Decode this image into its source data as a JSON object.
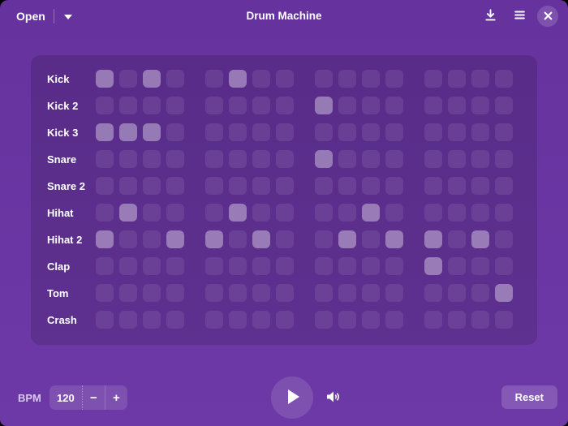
{
  "header": {
    "open_label": "Open",
    "title": "Drum Machine",
    "icons": {
      "open_dropdown": "chevron-down",
      "save": "download-arrow",
      "menu": "hamburger",
      "close": "x"
    }
  },
  "grid": {
    "step_count": 16,
    "group_size": 4,
    "rows": [
      {
        "label": "Kick",
        "steps": [
          1,
          0,
          1,
          0,
          0,
          1,
          0,
          0,
          0,
          0,
          0,
          0,
          0,
          0,
          0,
          0
        ]
      },
      {
        "label": "Kick 2",
        "steps": [
          0,
          0,
          0,
          0,
          0,
          0,
          0,
          0,
          1,
          0,
          0,
          0,
          0,
          0,
          0,
          0
        ]
      },
      {
        "label": "Kick 3",
        "steps": [
          1,
          1,
          1,
          0,
          0,
          0,
          0,
          0,
          0,
          0,
          0,
          0,
          0,
          0,
          0,
          0
        ]
      },
      {
        "label": "Snare",
        "steps": [
          0,
          0,
          0,
          0,
          0,
          0,
          0,
          0,
          1,
          0,
          0,
          0,
          0,
          0,
          0,
          0
        ]
      },
      {
        "label": "Snare 2",
        "steps": [
          0,
          0,
          0,
          0,
          0,
          0,
          0,
          0,
          0,
          0,
          0,
          0,
          0,
          0,
          0,
          0
        ]
      },
      {
        "label": "Hihat",
        "steps": [
          0,
          1,
          0,
          0,
          0,
          1,
          0,
          0,
          0,
          0,
          1,
          0,
          0,
          0,
          0,
          0
        ]
      },
      {
        "label": "Hihat 2",
        "steps": [
          1,
          0,
          0,
          1,
          1,
          0,
          1,
          0,
          0,
          1,
          0,
          1,
          1,
          0,
          1,
          0
        ]
      },
      {
        "label": "Clap",
        "steps": [
          0,
          0,
          0,
          0,
          0,
          0,
          0,
          0,
          0,
          0,
          0,
          0,
          1,
          0,
          0,
          0
        ]
      },
      {
        "label": "Tom",
        "steps": [
          0,
          0,
          0,
          0,
          0,
          0,
          0,
          0,
          0,
          0,
          0,
          0,
          0,
          0,
          0,
          1
        ]
      },
      {
        "label": "Crash",
        "steps": [
          0,
          0,
          0,
          0,
          0,
          0,
          0,
          0,
          0,
          0,
          0,
          0,
          0,
          0,
          0,
          0
        ]
      }
    ]
  },
  "footer": {
    "bpm_label": "BPM",
    "bpm_value": "120",
    "decrease_label": "−",
    "increase_label": "+",
    "reset_label": "Reset",
    "icons": {
      "play": "play-triangle",
      "volume": "speaker-medium"
    }
  },
  "colors": {
    "window_bg_top": "#66329d",
    "window_bg_bottom": "#6d39a7",
    "panel_bg": "rgba(0,0,0,0.13)",
    "cell_inactive": "rgba(255,255,255,0.085)",
    "cell_active": "rgba(255,255,255,0.37)",
    "control_bg": "rgba(255,255,255,0.12)",
    "control_bg_light": "rgba(255,255,255,0.16)",
    "text_primary": "#ffffff",
    "text_dim": "#d9c8ef"
  }
}
